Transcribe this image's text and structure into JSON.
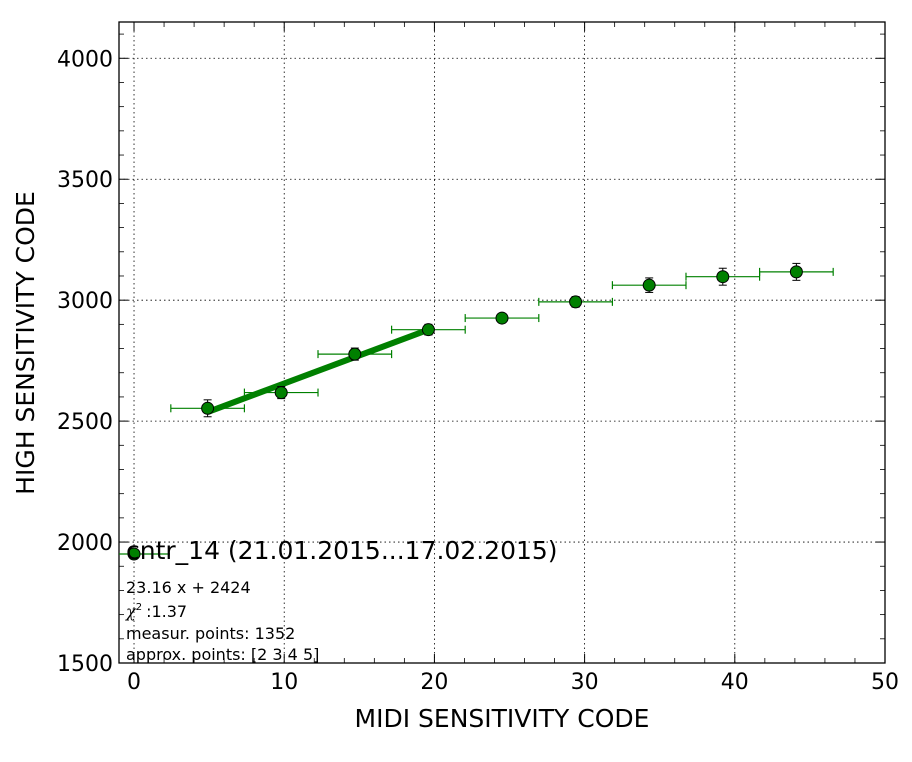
{
  "chart_data": {
    "type": "scatter",
    "xlabel": "MIDI SENSITIVITY CODE",
    "ylabel": "HIGH SENSITIVITY CODE",
    "xlim": [
      -1,
      50
    ],
    "ylim": [
      1500,
      4150
    ],
    "xticks": [
      0,
      10,
      20,
      30,
      40,
      50
    ],
    "yticks": [
      1500,
      2000,
      2500,
      3000,
      3500,
      4000
    ],
    "grid": true,
    "marker_color": "#008000",
    "line_color": "#008000",
    "series": [
      {
        "x": [
          4.9,
          9.8,
          14.7,
          19.6,
          24.5,
          29.4,
          34.3,
          39.2,
          44.1
        ],
        "y": [
          2553,
          2618,
          2777,
          2878,
          2926,
          2993,
          3062,
          3097,
          3117
        ],
        "xerr": [
          2.45,
          2.45,
          2.45,
          2.45,
          2.45,
          2.45,
          2.45,
          2.45,
          2.45
        ],
        "yerr": [
          35,
          25,
          25,
          22,
          18,
          22,
          30,
          35,
          35
        ]
      }
    ],
    "fit": {
      "slope": 23.16,
      "intercept": 2424,
      "x_range": [
        4.9,
        19.6
      ]
    },
    "legend": {
      "placement": "lower-left",
      "title": "cntr_14 (21.01.2015...17.02.2015)",
      "lines": [
        "23.16 x + 2424",
        ":1.37",
        "measur. points: 1352",
        "approx. points: [2 3 4 5]"
      ],
      "chi_symbol": "χ",
      "chi_exponent": "2"
    }
  }
}
